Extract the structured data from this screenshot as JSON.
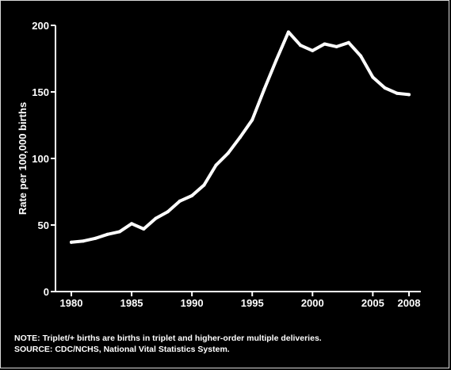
{
  "chart_data": {
    "type": "line",
    "title": "",
    "xlabel": "",
    "ylabel": "Rate per 100,000 births",
    "xlim": [
      1980,
      2008
    ],
    "ylim": [
      0,
      200
    ],
    "x_ticks": [
      "1980",
      "1985",
      "1990",
      "1995",
      "2000",
      "2005",
      "2008"
    ],
    "y_ticks": [
      "0",
      "50",
      "100",
      "150",
      "200"
    ],
    "grid": false,
    "series": [
      {
        "x": [
          1980,
          1981,
          1982,
          1983,
          1984,
          1985,
          1986,
          1987,
          1988,
          1989,
          1990,
          1991,
          1992,
          1993,
          1994,
          1995,
          1996,
          1997,
          1998,
          1999,
          2000,
          2001,
          2002,
          2003,
          2004,
          2005,
          2006,
          2007,
          2008
        ],
        "values": [
          37,
          38,
          40,
          43,
          45,
          51,
          47,
          55,
          60,
          68,
          72,
          80,
          95,
          104,
          116,
          129,
          152,
          174,
          195,
          185,
          181,
          186,
          184,
          187,
          177,
          161,
          153,
          149,
          148
        ]
      }
    ]
  },
  "notes": {
    "note": "NOTE: Triplet/+ births are births in triplet and higher-order multiple deliveries.",
    "source": "SOURCE: CDC/NCHS, National Vital Statistics System."
  },
  "colors": {
    "background": "#000000",
    "line": "#ffffff",
    "axes": "#ffffff"
  }
}
